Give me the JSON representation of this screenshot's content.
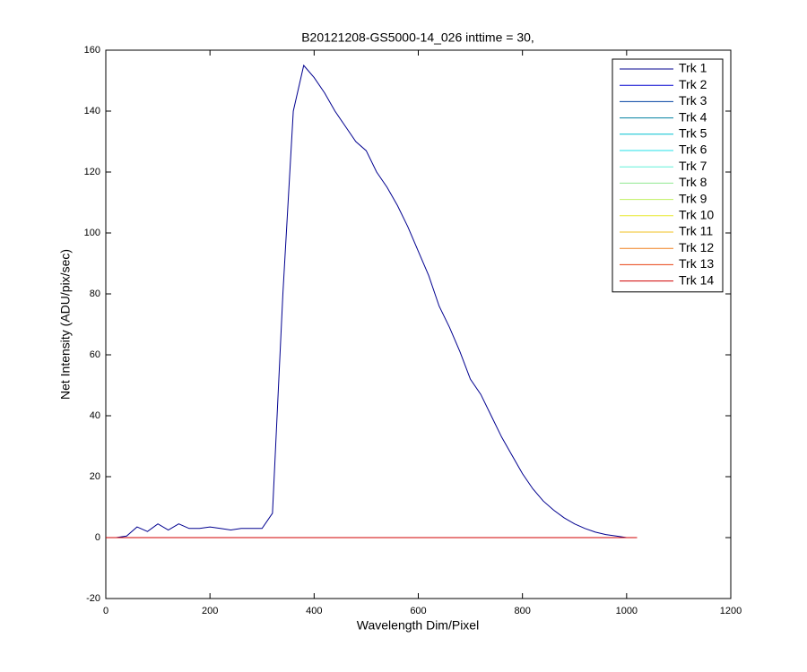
{
  "chart_data": {
    "type": "line",
    "title": "B20121208-GS5000-14_026 inttime = 30,",
    "x_label": "Wavelength Dim/Pixel",
    "y_label": "Net Intensity (ADU/pix/sec)",
    "x": [
      0,
      20,
      40,
      60,
      80,
      100,
      120,
      140,
      160,
      180,
      200,
      220,
      240,
      260,
      280,
      300,
      320,
      340,
      360,
      380,
      400,
      420,
      440,
      460,
      480,
      500,
      520,
      540,
      560,
      580,
      600,
      620,
      640,
      660,
      680,
      700,
      720,
      740,
      760,
      780,
      800,
      820,
      840,
      860,
      880,
      900,
      920,
      940,
      960,
      980,
      1000,
      1020
    ],
    "series": [
      {
        "name": "Trk 1",
        "color": "#00008F",
        "values": [
          0,
          0,
          0.5,
          3.5,
          2,
          4.5,
          2.5,
          4.5,
          3,
          3,
          3.5,
          3,
          2.5,
          3,
          3,
          3,
          8,
          80,
          140,
          155,
          151,
          146,
          140,
          135,
          130,
          127,
          120,
          115,
          109,
          102,
          94,
          86,
          76,
          69,
          61,
          52,
          47,
          40,
          33,
          27,
          21,
          16,
          12,
          9,
          6.5,
          4.5,
          3,
          1.8,
          1,
          0.5,
          0,
          0
        ]
      },
      {
        "name": "Trk 2",
        "color": "#0000CF",
        "values": [
          0,
          0,
          0,
          0,
          0,
          0,
          0,
          0,
          0,
          0,
          0,
          0,
          0,
          0,
          0,
          0,
          0,
          0,
          0,
          0,
          0,
          0,
          0,
          0,
          0,
          0,
          0,
          0,
          0,
          0,
          0,
          0,
          0,
          0,
          0,
          0,
          0,
          0,
          0,
          0,
          0,
          0,
          0,
          0,
          0,
          0,
          0,
          0,
          0,
          0,
          0,
          0
        ]
      },
      {
        "name": "Trk 3",
        "color": "#0040A0",
        "values": [
          0,
          0,
          0,
          0,
          0,
          0,
          0,
          0,
          0,
          0,
          0,
          0,
          0,
          0,
          0,
          0,
          0,
          0,
          0,
          0,
          0,
          0,
          0,
          0,
          0,
          0,
          0,
          0,
          0,
          0,
          0,
          0,
          0,
          0,
          0,
          0,
          0,
          0,
          0,
          0,
          0,
          0,
          0,
          0,
          0,
          0,
          0,
          0,
          0,
          0,
          0,
          0
        ]
      },
      {
        "name": "Trk 4",
        "color": "#0080A0",
        "values": [
          0,
          0,
          0,
          0,
          0,
          0,
          0,
          0,
          0,
          0,
          0,
          0,
          0,
          0,
          0,
          0,
          0,
          0,
          0,
          0,
          0,
          0,
          0,
          0,
          0,
          0,
          0,
          0,
          0,
          0,
          0,
          0,
          0,
          0,
          0,
          0,
          0,
          0,
          0,
          0,
          0,
          0,
          0,
          0,
          0,
          0,
          0,
          0,
          0,
          0,
          0,
          0
        ]
      },
      {
        "name": "Trk 5",
        "color": "#00C0D0",
        "values": [
          0,
          0,
          0,
          0,
          0,
          0,
          0,
          0,
          0,
          0,
          0,
          0,
          0,
          0,
          0,
          0,
          0,
          0,
          0,
          0,
          0,
          0,
          0,
          0,
          0,
          0,
          0,
          0,
          0,
          0,
          0,
          0,
          0,
          0,
          0,
          0,
          0,
          0,
          0,
          0,
          0,
          0,
          0,
          0,
          0,
          0,
          0,
          0,
          0,
          0,
          0,
          0
        ]
      },
      {
        "name": "Trk 6",
        "color": "#20E0E8",
        "values": [
          0,
          0,
          0,
          0,
          0,
          0,
          0,
          0,
          0,
          0,
          0,
          0,
          0,
          0,
          0,
          0,
          0,
          0,
          0,
          0,
          0,
          0,
          0,
          0,
          0,
          0,
          0,
          0,
          0,
          0,
          0,
          0,
          0,
          0,
          0,
          0,
          0,
          0,
          0,
          0,
          0,
          0,
          0,
          0,
          0,
          0,
          0,
          0,
          0,
          0,
          0,
          0
        ]
      },
      {
        "name": "Trk 7",
        "color": "#60F0D8",
        "values": [
          0,
          0,
          0,
          0,
          0,
          0,
          0,
          0,
          0,
          0,
          0,
          0,
          0,
          0,
          0,
          0,
          0,
          0,
          0,
          0,
          0,
          0,
          0,
          0,
          0,
          0,
          0,
          0,
          0,
          0,
          0,
          0,
          0,
          0,
          0,
          0,
          0,
          0,
          0,
          0,
          0,
          0,
          0,
          0,
          0,
          0,
          0,
          0,
          0,
          0,
          0,
          0
        ]
      },
      {
        "name": "Trk 8",
        "color": "#90E890",
        "values": [
          0,
          0,
          0,
          0,
          0,
          0,
          0,
          0,
          0,
          0,
          0,
          0,
          0,
          0,
          0,
          0,
          0,
          0,
          0,
          0,
          0,
          0,
          0,
          0,
          0,
          0,
          0,
          0,
          0,
          0,
          0,
          0,
          0,
          0,
          0,
          0,
          0,
          0,
          0,
          0,
          0,
          0,
          0,
          0,
          0,
          0,
          0,
          0,
          0,
          0,
          0,
          0
        ]
      },
      {
        "name": "Trk 9",
        "color": "#C0F060",
        "values": [
          0,
          0,
          0,
          0,
          0,
          0,
          0,
          0,
          0,
          0,
          0,
          0,
          0,
          0,
          0,
          0,
          0,
          0,
          0,
          0,
          0,
          0,
          0,
          0,
          0,
          0,
          0,
          0,
          0,
          0,
          0,
          0,
          0,
          0,
          0,
          0,
          0,
          0,
          0,
          0,
          0,
          0,
          0,
          0,
          0,
          0,
          0,
          0,
          0,
          0,
          0,
          0
        ]
      },
      {
        "name": "Trk 10",
        "color": "#E8E830",
        "values": [
          0,
          0,
          0,
          0,
          0,
          0,
          0,
          0,
          0,
          0,
          0,
          0,
          0,
          0,
          0,
          0,
          0,
          0,
          0,
          0,
          0,
          0,
          0,
          0,
          0,
          0,
          0,
          0,
          0,
          0,
          0,
          0,
          0,
          0,
          0,
          0,
          0,
          0,
          0,
          0,
          0,
          0,
          0,
          0,
          0,
          0,
          0,
          0,
          0,
          0,
          0,
          0
        ]
      },
      {
        "name": "Trk 11",
        "color": "#F0C020",
        "values": [
          0,
          0,
          0,
          0,
          0,
          0,
          0,
          0,
          0,
          0,
          0,
          0,
          0,
          0,
          0,
          0,
          0,
          0,
          0,
          0,
          0,
          0,
          0,
          0,
          0,
          0,
          0,
          0,
          0,
          0,
          0,
          0,
          0,
          0,
          0,
          0,
          0,
          0,
          0,
          0,
          0,
          0,
          0,
          0,
          0,
          0,
          0,
          0,
          0,
          0,
          0,
          0
        ]
      },
      {
        "name": "Trk 12",
        "color": "#F08020",
        "values": [
          0,
          0,
          0,
          0,
          0,
          0,
          0,
          0,
          0,
          0,
          0,
          0,
          0,
          0,
          0,
          0,
          0,
          0,
          0,
          0,
          0,
          0,
          0,
          0,
          0,
          0,
          0,
          0,
          0,
          0,
          0,
          0,
          0,
          0,
          0,
          0,
          0,
          0,
          0,
          0,
          0,
          0,
          0,
          0,
          0,
          0,
          0,
          0,
          0,
          0,
          0,
          0
        ]
      },
      {
        "name": "Trk 13",
        "color": "#E84010",
        "values": [
          0,
          0,
          0,
          0,
          0,
          0,
          0,
          0,
          0,
          0,
          0,
          0,
          0,
          0,
          0,
          0,
          0,
          0,
          0,
          0,
          0,
          0,
          0,
          0,
          0,
          0,
          0,
          0,
          0,
          0,
          0,
          0,
          0,
          0,
          0,
          0,
          0,
          0,
          0,
          0,
          0,
          0,
          0,
          0,
          0,
          0,
          0,
          0,
          0,
          0,
          0,
          0
        ]
      },
      {
        "name": "Trk 14",
        "color": "#D00000",
        "values": [
          0,
          0,
          0,
          0,
          0,
          0,
          0,
          0,
          0,
          0,
          0,
          0,
          0,
          0,
          0,
          0,
          0,
          0,
          0,
          0,
          0,
          0,
          0,
          0,
          0,
          0,
          0,
          0,
          0,
          0,
          0,
          0,
          0,
          0,
          0,
          0,
          0,
          0,
          0,
          0,
          0,
          0,
          0,
          0,
          0,
          0,
          0,
          0,
          0,
          0,
          0,
          0
        ]
      }
    ],
    "xlim": [
      0,
      1200
    ],
    "xticks": [
      0,
      200,
      400,
      600,
      800,
      1000,
      1200
    ],
    "ylim": [
      -20,
      160
    ],
    "yticks": [
      -20,
      0,
      20,
      40,
      60,
      80,
      100,
      120,
      140,
      160
    ],
    "legend": "upper right",
    "grid": false
  }
}
